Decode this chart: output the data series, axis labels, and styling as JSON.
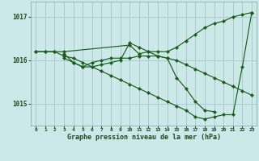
{
  "background_color": "#cce8e8",
  "grid_color": "#aacccc",
  "line_color": "#1a5e1a",
  "marker_color": "#1a5e1a",
  "xlabel": "Graphe pression niveau de la mer (hPa)",
  "ylabel_ticks": [
    1015,
    1016,
    1017
  ],
  "xticks": [
    0,
    1,
    2,
    3,
    4,
    5,
    6,
    7,
    8,
    9,
    10,
    11,
    12,
    13,
    14,
    15,
    16,
    17,
    18,
    19,
    20,
    21,
    22,
    23
  ],
  "xlim": [
    -0.5,
    23.5
  ],
  "ylim": [
    1014.5,
    1017.35
  ],
  "lines": [
    {
      "x": [
        0,
        1,
        2,
        3,
        10,
        11,
        12,
        13,
        14,
        15,
        16,
        17,
        18,
        19,
        20,
        21,
        22,
        23
      ],
      "y": [
        1016.2,
        1016.2,
        1016.2,
        1016.2,
        1016.35,
        1016.15,
        1016.2,
        1016.2,
        1016.2,
        1016.3,
        1016.45,
        1016.6,
        1016.75,
        1016.85,
        1016.9,
        1017.0,
        1017.05,
        1017.1
      ]
    },
    {
      "x": [
        3,
        4,
        5,
        6,
        7,
        8,
        9,
        10,
        11,
        12,
        13,
        14,
        15,
        16,
        17,
        18,
        19,
        20,
        21,
        22,
        23
      ],
      "y": [
        1016.15,
        1015.95,
        1015.85,
        1015.95,
        1016.0,
        1016.05,
        1016.05,
        1016.05,
        1016.1,
        1016.1,
        1016.1,
        1016.05,
        1016.0,
        1015.9,
        1015.8,
        1015.7,
        1015.6,
        1015.5,
        1015.4,
        1015.3,
        1015.2
      ]
    },
    {
      "x": [
        3,
        4,
        5,
        6,
        7,
        8,
        9,
        10,
        11,
        12,
        13,
        14,
        15,
        16,
        17,
        18,
        19
      ],
      "y": [
        1016.05,
        1015.95,
        1015.85,
        1015.85,
        1015.9,
        1015.95,
        1016.0,
        1016.4,
        1016.3,
        1016.2,
        1016.1,
        1016.05,
        1015.6,
        1015.35,
        1015.05,
        1014.85,
        1014.82
      ]
    },
    {
      "x": [
        0,
        1,
        2,
        3,
        4,
        5,
        6,
        7,
        8,
        9,
        10,
        11,
        12,
        13,
        14,
        15,
        16,
        17,
        18,
        19,
        20,
        21,
        22,
        23
      ],
      "y": [
        1016.2,
        1016.2,
        1016.2,
        1016.1,
        1016.05,
        1015.95,
        1015.85,
        1015.75,
        1015.65,
        1015.55,
        1015.45,
        1015.35,
        1015.25,
        1015.15,
        1015.05,
        1014.95,
        1014.85,
        1014.7,
        1014.65,
        1014.7,
        1014.75,
        1014.75,
        1015.85,
        1017.1
      ]
    }
  ]
}
